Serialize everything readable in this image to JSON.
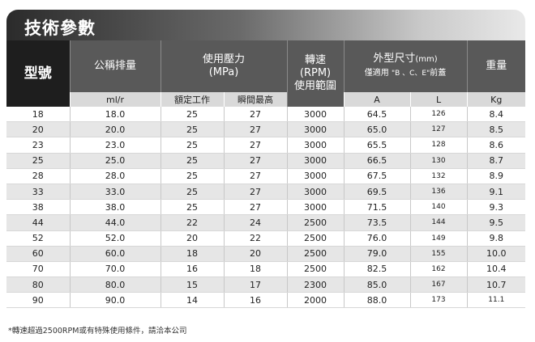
{
  "title": "技術參數",
  "headers": {
    "model": "型號",
    "displacement": "公稱排量",
    "pressure_line1": "使用壓力",
    "pressure_line2": "(MPa)",
    "speed_line1": "轉速",
    "speed_line2": "(RPM)",
    "speed_line3": "使用範圍",
    "dims_line1": "外型尺寸",
    "dims_unit": "(mm)",
    "dims_line2_a": "僅適用 ",
    "dims_line2_b": "\"B 、C、E\"",
    "dims_line2_c": "前蓋",
    "weight": "重量"
  },
  "subheaders": {
    "displacement_unit": "ml/r",
    "rated": "額定工作",
    "peak": "瞬間最高",
    "dim_a": "A",
    "dim_l": "L",
    "weight_unit": "Kg"
  },
  "rows": [
    [
      "18",
      "18.0",
      "25",
      "27",
      "3000",
      "64.5",
      "126",
      "8.4"
    ],
    [
      "20",
      "20.0",
      "25",
      "27",
      "3000",
      "65.0",
      "127",
      "8.5"
    ],
    [
      "23",
      "23.0",
      "25",
      "27",
      "3000",
      "65.5",
      "128",
      "8.6"
    ],
    [
      "25",
      "25.0",
      "25",
      "27",
      "3000",
      "66.5",
      "130",
      "8.7"
    ],
    [
      "28",
      "28.0",
      "25",
      "27",
      "3000",
      "67.5",
      "132",
      "8.9"
    ],
    [
      "33",
      "33.0",
      "25",
      "27",
      "3000",
      "69.5",
      "136",
      "9.1"
    ],
    [
      "38",
      "38.0",
      "25",
      "27",
      "3000",
      "71.5",
      "140",
      "9.3"
    ],
    [
      "44",
      "44.0",
      "22",
      "24",
      "2500",
      "73.5",
      "144",
      "9.5"
    ],
    [
      "52",
      "52.0",
      "20",
      "22",
      "2500",
      "76.0",
      "149",
      "9.8"
    ],
    [
      "60",
      "60.0",
      "18",
      "20",
      "2500",
      "79.0",
      "155",
      "10.0"
    ],
    [
      "70",
      "70.0",
      "16",
      "18",
      "2500",
      "82.5",
      "162",
      "10.4"
    ],
    [
      "80",
      "80.0",
      "15",
      "17",
      "2300",
      "85.0",
      "167",
      "10.7"
    ],
    [
      "90",
      "90.0",
      "14",
      "16",
      "2000",
      "88.0",
      "173",
      "11.1"
    ]
  ],
  "footnote": "*轉速超過2500RPM或有特殊使用條件，請洽本公司"
}
